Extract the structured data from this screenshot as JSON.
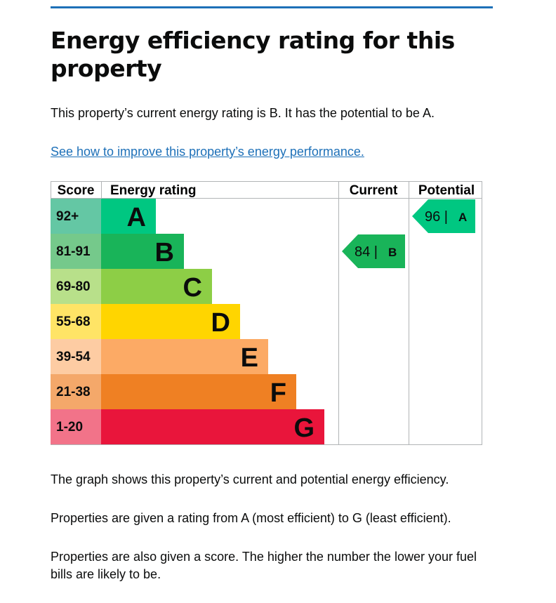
{
  "page": {
    "title": "Energy efficiency rating for this property",
    "intro": "This property’s current energy rating is B. It has the potential to be A.",
    "improve_link": "See how to improve this property’s energy performance.",
    "paragraphs": [
      "The graph shows this property’s current and potential energy efficiency.",
      "Properties are given a rating from A (most efficient) to G (least efficient).",
      "Properties are also given a score. The higher the number the lower your fuel bills are likely to be."
    ]
  },
  "chart_data": {
    "type": "bar",
    "columns": [
      "Score",
      "Energy rating",
      "Current",
      "Potential"
    ],
    "bands": [
      {
        "letter": "A",
        "score_range": "92+",
        "color": "#00c781",
        "score_color": "#64c7a4"
      },
      {
        "letter": "B",
        "score_range": "81-91",
        "color": "#19b459",
        "score_color": "#75c98b"
      },
      {
        "letter": "C",
        "score_range": "69-80",
        "color": "#8dce46",
        "score_color": "#b8e08a"
      },
      {
        "letter": "D",
        "score_range": "55-68",
        "color": "#ffd500",
        "score_color": "#ffe466"
      },
      {
        "letter": "E",
        "score_range": "39-54",
        "color": "#fcaa65",
        "score_color": "#fdcca3"
      },
      {
        "letter": "F",
        "score_range": "21-38",
        "color": "#ef8023",
        "score_color": "#f4a86a"
      },
      {
        "letter": "G",
        "score_range": "1-20",
        "color": "#e9153b",
        "score_color": "#f27389"
      }
    ],
    "current": {
      "score": 84,
      "band": "B",
      "label": "84 |"
    },
    "potential": {
      "score": 96,
      "band": "A",
      "label": "96 |"
    }
  }
}
